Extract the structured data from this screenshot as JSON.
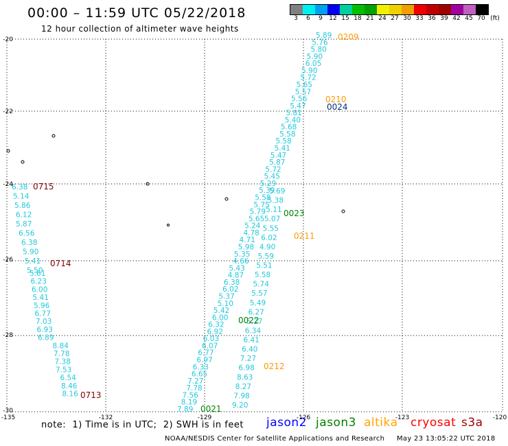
{
  "header": {
    "title": "00:00 – 11:59 UTC 05/22/2018",
    "subtitle": "12 hour collection of altimeter wave heights"
  },
  "colorbar": {
    "colors": [
      "#808080",
      "#00f0f0",
      "#00a0f0",
      "#0000f0",
      "#00d0a0",
      "#00c000",
      "#00a000",
      "#f0f000",
      "#f0d000",
      "#f0a000",
      "#f00000",
      "#c00000",
      "#a00000",
      "#a000a0",
      "#c060c0",
      "#000000"
    ],
    "labels": [
      "3",
      "6",
      "9",
      "12",
      "15",
      "18",
      "21",
      "24",
      "27",
      "30",
      "33",
      "36",
      "39",
      "42",
      "45",
      "70",
      "(ft)"
    ]
  },
  "axes": {
    "x_ticks": [
      "-135",
      "-132",
      "-129",
      "-126",
      "-123",
      "-120"
    ],
    "y_ticks": [
      "-20",
      "-22",
      "-24",
      "-26",
      "-28",
      "-30"
    ]
  },
  "tracks": [
    {
      "pass": "0715",
      "satellite": "cryosat",
      "values": [
        "6.38",
        "5.14",
        "5.86",
        "6.12",
        "5.87",
        "6.56",
        "6.38",
        "5.90",
        "5.41",
        "5.50"
      ]
    },
    {
      "pass": "0714",
      "satellite": "cryosat",
      "values": [
        "5.61",
        "6.23",
        "6.00",
        "5.41",
        "5.96",
        "6.77",
        "7.03",
        "6.93",
        "6.89",
        "8.84",
        "7.78",
        "7.38",
        "7.53",
        "6.54",
        "8.46",
        "8.16"
      ]
    },
    {
      "pass": "0713",
      "satellite": "cryosat",
      "values": []
    },
    {
      "pass": "0021",
      "satellite": "jason3",
      "values": [
        "7.89",
        "8.19",
        "7.56",
        "7.78",
        "7.27",
        "6.65",
        "6.33",
        "6.97",
        "6.77",
        "6.07",
        "6.03",
        "6.92",
        "6.32",
        "6.00",
        "5.42",
        "5.10",
        "5.37",
        "6.02",
        "6.38",
        "4.87",
        "5.43",
        "4.66",
        "5.35",
        "5.98",
        "4.71",
        "4.78",
        "5.24",
        "5.65",
        "5.79",
        "5.75",
        "5.58",
        "5.39",
        "5.29",
        "5.45",
        "5.72",
        "5.87",
        "5.47",
        "5.41",
        "5.58",
        "5.58",
        "5.68",
        "5.40",
        "5.81",
        "5.47",
        "5.56",
        "5.57",
        "5.65",
        "5.72",
        "5.90",
        "6.05",
        "5.90",
        "5.80",
        "5.76",
        "5.89"
      ]
    },
    {
      "pass": "0022",
      "satellite": "jason3",
      "values": []
    },
    {
      "pass": "0023",
      "satellite": "jason3",
      "values": []
    },
    {
      "pass": "0024",
      "satellite": "jason3",
      "values": []
    },
    {
      "pass": "0209",
      "satellite": "altika",
      "values": []
    },
    {
      "pass": "0210",
      "satellite": "altika",
      "values": []
    },
    {
      "pass": "0211",
      "satellite": "altika",
      "values": [
        "5.69",
        "5.38",
        "5.11",
        "5.07",
        "5.55",
        "6.02",
        "4.90",
        "5.59",
        "5.51",
        "5.58",
        "5.74",
        "5.57",
        "5.49",
        "6.27",
        "5.27",
        "6.34",
        "6.41",
        "6.40",
        "7.27",
        "6.98",
        "8.63",
        "8.27",
        "7.98",
        "9.20"
      ]
    },
    {
      "pass": "0212",
      "satellite": "altika",
      "values": []
    }
  ],
  "satellites": [
    {
      "name": "jason2",
      "color": "#0000ff"
    },
    {
      "name": "jason3",
      "color": "#008000"
    },
    {
      "name": "altika",
      "color": "#ffa500"
    },
    {
      "name": "cryosat",
      "color": "#ff0000"
    },
    {
      "name": "s3a",
      "color": "#a00000"
    }
  ],
  "footer": {
    "note": "note:  1) Time is in UTC;  2) SWH is in feet",
    "credit": "NOAA/NESDIS Center for Satellite Applications and Research",
    "timestamp": "May 23 13:05:22 UTC 2018"
  }
}
